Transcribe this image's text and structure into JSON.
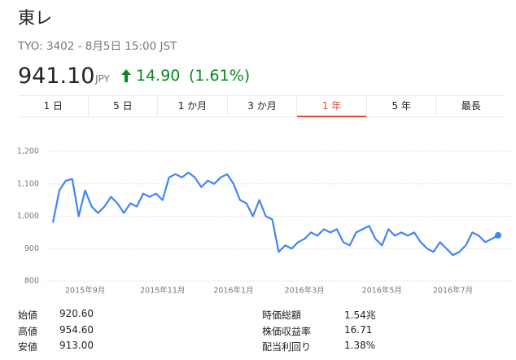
{
  "header": {
    "name": "東レ",
    "subtitle": "TYO: 3402 - 8月5日 15:00 JST",
    "price": "941.10",
    "currency": "JPY",
    "change": "14.90",
    "change_pct": "(1.61%)"
  },
  "tabs": [
    "1 日",
    "5 日",
    "1 か月",
    "3 か月",
    "1 年",
    "5 年",
    "最長"
  ],
  "selected_tab": 4,
  "chart_data": {
    "type": "line",
    "ylim": [
      800,
      1200
    ],
    "yticks": [
      {
        "value": 1200,
        "label": "1,200"
      },
      {
        "value": 1100,
        "label": "1,100"
      },
      {
        "value": 1000,
        "label": "1,000"
      },
      900,
      800
    ],
    "grid": true,
    "categories": [
      null,
      null,
      null,
      null,
      null,
      "2015年9月",
      null,
      null,
      null,
      null,
      null,
      null,
      null,
      null,
      null,
      null,
      null,
      "2015年11月",
      null,
      null,
      null,
      null,
      null,
      null,
      null,
      null,
      null,
      null,
      "2016年1月",
      null,
      null,
      null,
      null,
      null,
      null,
      null,
      null,
      null,
      null,
      "2016年3月",
      null,
      null,
      null,
      null,
      null,
      null,
      null,
      null,
      null,
      null,
      null,
      "2016年5月",
      null,
      null,
      null,
      null,
      null,
      null,
      null,
      null,
      null,
      null,
      "2016年7月",
      null,
      null,
      null,
      null,
      null,
      null,
      null
    ],
    "series": [
      {
        "color": "#4285f4",
        "values": [
          980,
          1080,
          1110,
          1115,
          1000,
          1080,
          1030,
          1010,
          1030,
          1060,
          1040,
          1010,
          1040,
          1030,
          1070,
          1060,
          1070,
          1050,
          1120,
          1130,
          1120,
          1135,
          1120,
          1090,
          1110,
          1100,
          1120,
          1130,
          1100,
          1050,
          1040,
          1000,
          1050,
          1000,
          990,
          890,
          910,
          900,
          920,
          930,
          950,
          940,
          960,
          950,
          960,
          920,
          910,
          950,
          960,
          970,
          930,
          910,
          960,
          940,
          950,
          940,
          950,
          920,
          900,
          890,
          920,
          900,
          880,
          890,
          910,
          950,
          940,
          920,
          930,
          941.1
        ]
      }
    ]
  },
  "stats": {
    "left": [
      [
        "始値",
        "920.60"
      ],
      [
        "高値",
        "954.60"
      ],
      [
        "安値",
        "913.00"
      ]
    ],
    "right": [
      [
        "時価総額",
        "1.54兆"
      ],
      [
        "株価収益率",
        "16.71"
      ],
      [
        "配当利回り",
        "1.38%"
      ]
    ]
  }
}
